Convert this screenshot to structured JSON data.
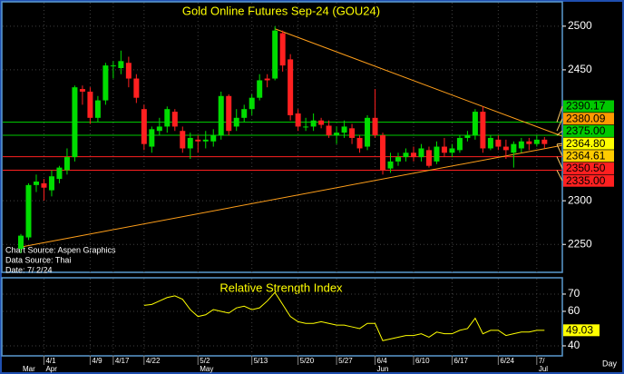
{
  "chart_data": {
    "type": "candlestick",
    "title": "Gold Online Futures Sep-24 (GOU24)",
    "source_lines": [
      "Chart Source: Aspen Graphics",
      "Data Source: Thai",
      "Date: 7/ 2/24"
    ],
    "x_axis_label": "Day",
    "up_color": "#00dd00",
    "down_color": "#ff2020",
    "open": [
      2245,
      2258,
      2318,
      2320,
      2312,
      2325,
      2335,
      2350,
      2428,
      2425,
      2395,
      2415,
      2455,
      2452,
      2458,
      2440,
      2405,
      2362,
      2380,
      2385,
      2402,
      2380,
      2360,
      2370,
      2368,
      2368,
      2375,
      2420,
      2385,
      2395,
      2405,
      2418,
      2440,
      2440,
      2492,
      2462,
      2400,
      2385,
      2385,
      2392,
      2386,
      2375,
      2378,
      2383,
      2372,
      2362,
      2395,
      2375,
      2337,
      2345,
      2350,
      2355,
      2350,
      2358,
      2345,
      2362,
      2355,
      2358,
      2372,
      2375,
      2402,
      2360,
      2370,
      2362,
      2355,
      2360,
      2368,
      2365,
      2370
    ],
    "high": [
      2262,
      2320,
      2330,
      2325,
      2335,
      2340,
      2360,
      2432,
      2432,
      2430,
      2420,
      2458,
      2460,
      2472,
      2465,
      2445,
      2410,
      2385,
      2395,
      2408,
      2405,
      2385,
      2378,
      2375,
      2380,
      2382,
      2425,
      2422,
      2405,
      2410,
      2422,
      2445,
      2445,
      2500,
      2495,
      2468,
      2405,
      2395,
      2400,
      2395,
      2392,
      2385,
      2392,
      2388,
      2375,
      2398,
      2428,
      2378,
      2355,
      2355,
      2360,
      2362,
      2365,
      2362,
      2368,
      2372,
      2365,
      2375,
      2380,
      2405,
      2408,
      2375,
      2375,
      2370,
      2368,
      2372,
      2372,
      2375,
      2373
    ],
    "low": [
      2240,
      2255,
      2310,
      2300,
      2305,
      2320,
      2330,
      2345,
      2410,
      2388,
      2390,
      2410,
      2440,
      2445,
      2430,
      2412,
      2358,
      2355,
      2375,
      2378,
      2380,
      2355,
      2348,
      2355,
      2360,
      2362,
      2370,
      2375,
      2380,
      2390,
      2398,
      2415,
      2430,
      2438,
      2448,
      2392,
      2380,
      2380,
      2380,
      2383,
      2372,
      2365,
      2372,
      2365,
      2355,
      2358,
      2372,
      2330,
      2332,
      2340,
      2345,
      2345,
      2345,
      2338,
      2342,
      2350,
      2350,
      2355,
      2368,
      2370,
      2355,
      2358,
      2358,
      2348,
      2338,
      2355,
      2358,
      2362,
      2360
    ],
    "close": [
      2260,
      2318,
      2322,
      2315,
      2328,
      2338,
      2350,
      2430,
      2425,
      2395,
      2415,
      2455,
      2455,
      2460,
      2440,
      2418,
      2365,
      2382,
      2385,
      2405,
      2385,
      2360,
      2372,
      2368,
      2370,
      2375,
      2420,
      2380,
      2395,
      2405,
      2418,
      2438,
      2438,
      2495,
      2455,
      2398,
      2385,
      2385,
      2392,
      2387,
      2375,
      2378,
      2385,
      2372,
      2360,
      2395,
      2375,
      2335,
      2345,
      2350,
      2355,
      2350,
      2360,
      2340,
      2362,
      2355,
      2360,
      2372,
      2375,
      2402,
      2360,
      2372,
      2362,
      2358,
      2365,
      2368,
      2365,
      2370,
      2365
    ],
    "ylim": [
      2218,
      2530
    ],
    "yticks": [
      2250,
      2300,
      2450,
      2500
    ],
    "grid": true,
    "xticks": [
      {
        "value": 3,
        "label": "4/1"
      },
      {
        "value": 9,
        "label": "4/9"
      },
      {
        "value": 12,
        "label": "4/17"
      },
      {
        "value": 16,
        "label": "4/22"
      },
      {
        "value": 23,
        "label": "5/2"
      },
      {
        "value": 30,
        "label": "5/13"
      },
      {
        "value": 36,
        "label": "5/20"
      },
      {
        "value": 41,
        "label": "5/27"
      },
      {
        "value": 46,
        "label": "6/4"
      },
      {
        "value": 51,
        "label": "6/10"
      },
      {
        "value": 56,
        "label": "6/17"
      },
      {
        "value": 62,
        "label": "6/24"
      },
      {
        "value": 67,
        "label": "7/"
      }
    ],
    "month_ticks": [
      {
        "value": 0,
        "label": "Mar"
      },
      {
        "value": 3,
        "label": "Apr"
      },
      {
        "value": 23,
        "label": "May"
      },
      {
        "value": 46,
        "label": "Jun"
      },
      {
        "value": 67,
        "label": "Jul"
      }
    ],
    "trendlines": [
      {
        "color": "#ff9f1a",
        "x": [
          33,
          70.3
        ],
        "y": [
          2497,
          2374
        ]
      },
      {
        "color": "#ff9f1a",
        "x": [
          0,
          70.3
        ],
        "y": [
          2247,
          2363.5
        ]
      }
    ],
    "price_labels": [
      {
        "value": 2390.17,
        "label": "2390.17",
        "color": "#00c800",
        "line": true
      },
      {
        "value": 2380.09,
        "label": "2380.09",
        "color": "#ff9900",
        "line": false
      },
      {
        "value": 2375.0,
        "label": "2375.00",
        "color": "#00c800",
        "line": true
      },
      {
        "value": 2364.8,
        "label": "2364.80",
        "color": "#ffff00",
        "line": false
      },
      {
        "value": 2364.61,
        "label": "2364.61",
        "color": "#ffcc00",
        "line": false
      },
      {
        "value": 2350.5,
        "label": "2350.50",
        "color": "#ff2020",
        "line": true
      },
      {
        "value": 2335.0,
        "label": "2335.00",
        "color": "#ff2020",
        "line": true
      }
    ],
    "rsi": {
      "title": "Relative Strength Index",
      "color": "#ffff00",
      "values": [
        null,
        null,
        null,
        null,
        null,
        null,
        null,
        null,
        null,
        null,
        null,
        null,
        null,
        null,
        null,
        null,
        63.5,
        64,
        66,
        68,
        69,
        67,
        61,
        57,
        58,
        61,
        60,
        59,
        62,
        63,
        61,
        62,
        66,
        71,
        64,
        57,
        54,
        53,
        53,
        54,
        53,
        52,
        52,
        51,
        50,
        53,
        53,
        43,
        44,
        45,
        46,
        46,
        47,
        45,
        48,
        47,
        47,
        49,
        50,
        56,
        47,
        49,
        49,
        46,
        47,
        48,
        48,
        49,
        49.03
      ],
      "last_label": "49.03",
      "ylim": [
        34.2,
        78.4
      ],
      "yticks": [
        40,
        60,
        70
      ]
    }
  }
}
